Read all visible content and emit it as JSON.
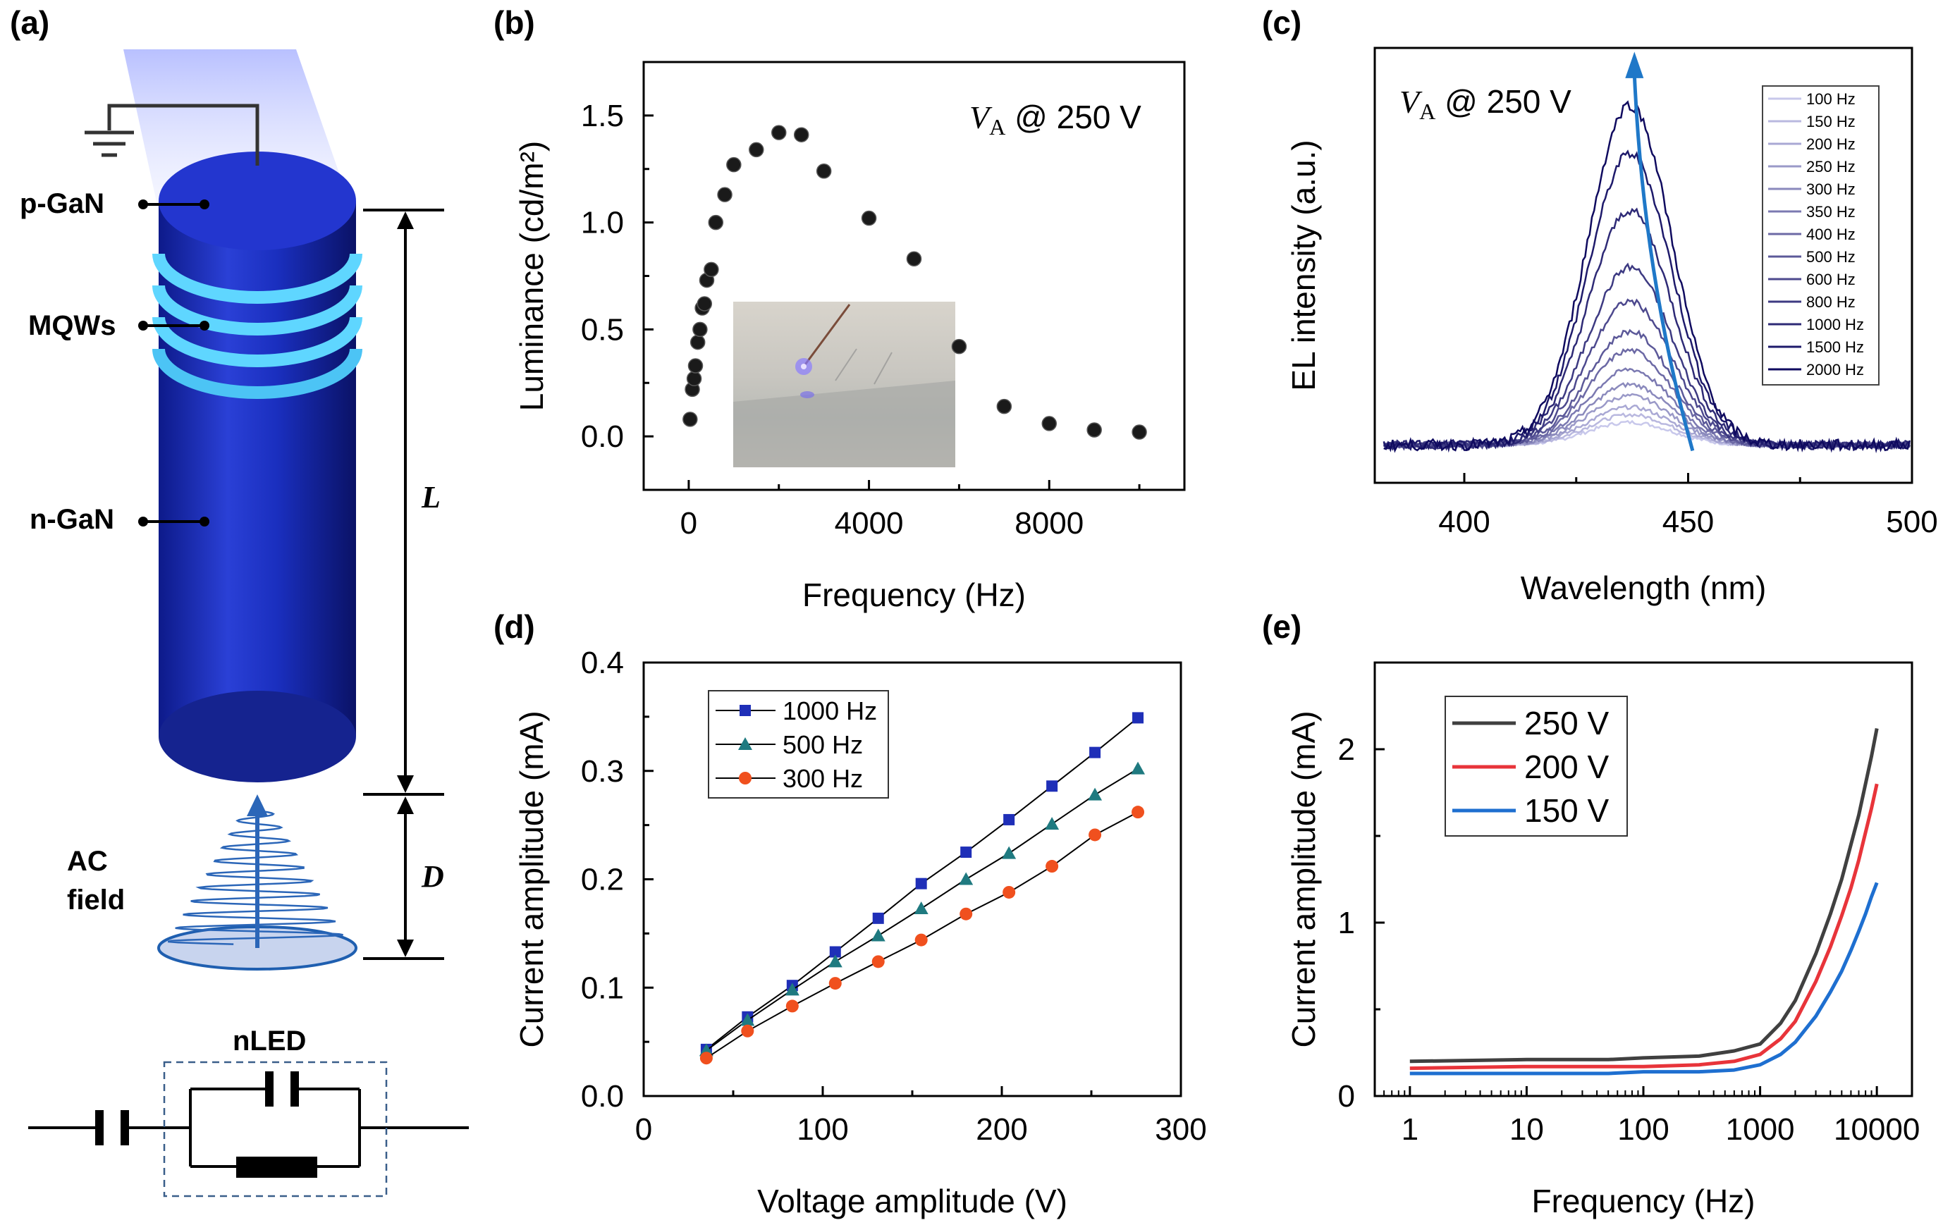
{
  "panels": {
    "a": {
      "label": "(a)",
      "layers": [
        "p-GaN",
        "MQWs",
        "n-GaN"
      ],
      "dim_L": "L",
      "dim_D": "D",
      "field_line1": "AC",
      "field_line2": "field",
      "circuit_label": "nLED"
    },
    "b": {
      "label": "(b)"
    },
    "c": {
      "label": "(c)"
    },
    "d": {
      "label": "(d)"
    },
    "e": {
      "label": "(e)"
    }
  },
  "colors": {
    "axis": "#000000",
    "cylinder": "#1a2fbf",
    "mqw": "#5fd6ff",
    "arrow_c": "#1f78c8",
    "d_1000": "#1f2fb8",
    "d_500": "#1f7a80",
    "d_300": "#f0501e",
    "e_250": "#404040",
    "e_200": "#e8343a",
    "e_150": "#1e6fd0"
  },
  "chart_data": [
    {
      "id": "b",
      "type": "scatter",
      "xlabel": "Frequency (Hz)",
      "ylabel": "Luminance (cd/m²)",
      "annotation": "V_A @ 250 V",
      "xlim": [
        -1000,
        11000
      ],
      "ylim": [
        -0.25,
        1.75
      ],
      "xticks": [
        "0",
        "4000",
        "8000"
      ],
      "xtick_values": [
        0,
        4000,
        8000
      ],
      "yticks": [
        "0.0",
        "0.5",
        "1.0",
        "1.5"
      ],
      "ytick_values": [
        0.0,
        0.5,
        1.0,
        1.5
      ],
      "x": [
        30,
        80,
        120,
        150,
        200,
        250,
        300,
        350,
        400,
        500,
        600,
        800,
        1000,
        1500,
        2000,
        2500,
        3000,
        4000,
        5000,
        6000,
        7000,
        8000,
        9000,
        10000
      ],
      "y": [
        0.08,
        0.22,
        0.27,
        0.33,
        0.44,
        0.5,
        0.6,
        0.62,
        0.73,
        0.78,
        1.0,
        1.13,
        1.27,
        1.34,
        1.42,
        1.41,
        1.24,
        1.02,
        0.83,
        0.42,
        0.14,
        0.06,
        0.03,
        0.02
      ],
      "inset": "photo"
    },
    {
      "id": "c",
      "type": "line",
      "xlabel": "Wavelength (nm)",
      "ylabel": "EL intensity (a.u.)",
      "annotation": "V_A @ 250 V",
      "xlim": [
        380,
        500
      ],
      "ylim": [
        0,
        1.15
      ],
      "xticks": [
        "400",
        "450",
        "500"
      ],
      "xtick_values": [
        400,
        450,
        500
      ],
      "peak_nm": 437,
      "fwhm_nm": 22,
      "baseline": 0.1,
      "series": [
        {
          "name": "100 Hz",
          "peak": 0.06
        },
        {
          "name": "150 Hz",
          "peak": 0.08
        },
        {
          "name": "200 Hz",
          "peak": 0.1
        },
        {
          "name": "250 Hz",
          "peak": 0.13
        },
        {
          "name": "300 Hz",
          "peak": 0.16
        },
        {
          "name": "350 Hz",
          "peak": 0.2
        },
        {
          "name": "400 Hz",
          "peak": 0.25
        },
        {
          "name": "500 Hz",
          "peak": 0.3
        },
        {
          "name": "600 Hz",
          "peak": 0.38
        },
        {
          "name": "800 Hz",
          "peak": 0.47
        },
        {
          "name": "1000 Hz",
          "peak": 0.62
        },
        {
          "name": "1500 Hz",
          "peak": 0.77
        },
        {
          "name": "2000 Hz",
          "peak": 0.9
        }
      ]
    },
    {
      "id": "d",
      "type": "line",
      "xlabel": "Voltage amplitude (V)",
      "ylabel": "Current amplitude (mA)",
      "xlim": [
        0,
        300
      ],
      "ylim": [
        0,
        0.4
      ],
      "xticks": [
        "0",
        "100",
        "200",
        "300"
      ],
      "xtick_values": [
        0,
        100,
        200,
        300
      ],
      "yticks": [
        "0.0",
        "0.1",
        "0.2",
        "0.3",
        "0.4"
      ],
      "ytick_values": [
        0,
        0.1,
        0.2,
        0.3,
        0.4
      ],
      "x": [
        35,
        58,
        83,
        107,
        131,
        155,
        180,
        204,
        228,
        252,
        276
      ],
      "series": [
        {
          "name": "1000 Hz",
          "marker": "square",
          "values": [
            0.043,
            0.073,
            0.102,
            0.133,
            0.164,
            0.196,
            0.225,
            0.255,
            0.286,
            0.317,
            0.349
          ]
        },
        {
          "name": "500 Hz",
          "marker": "triangle",
          "values": [
            0.042,
            0.07,
            0.098,
            0.124,
            0.148,
            0.173,
            0.2,
            0.224,
            0.251,
            0.278,
            0.302
          ]
        },
        {
          "name": "300 Hz",
          "marker": "circle",
          "values": [
            0.035,
            0.06,
            0.083,
            0.104,
            0.124,
            0.144,
            0.168,
            0.188,
            0.212,
            0.241,
            0.262
          ]
        }
      ]
    },
    {
      "id": "e",
      "type": "line",
      "xlabel": "Frequency (Hz)",
      "ylabel": "Current amplitude (mA)",
      "xscale": "log",
      "xlim": [
        0.5,
        20000
      ],
      "ylim": [
        0,
        2.5
      ],
      "xticks": [
        "1",
        "10",
        "100",
        "1000",
        "10000"
      ],
      "xtick_values": [
        1,
        10,
        100,
        1000,
        10000
      ],
      "yticks": [
        "0",
        "1",
        "2"
      ],
      "ytick_values": [
        0,
        1,
        2
      ],
      "series": [
        {
          "name": "250 V",
          "x": [
            1,
            10,
            50,
            100,
            300,
            600,
            1000,
            1500,
            2000,
            3000,
            4000,
            5000,
            6000,
            7000,
            8000,
            9000,
            10000
          ],
          "values": [
            0.2,
            0.21,
            0.21,
            0.22,
            0.23,
            0.26,
            0.3,
            0.42,
            0.55,
            0.82,
            1.05,
            1.25,
            1.45,
            1.62,
            1.8,
            1.96,
            2.12
          ]
        },
        {
          "name": "200 V",
          "x": [
            1,
            10,
            50,
            100,
            300,
            600,
            1000,
            1500,
            2000,
            3000,
            4000,
            5000,
            6000,
            7000,
            8000,
            9000,
            10000
          ],
          "values": [
            0.16,
            0.17,
            0.17,
            0.17,
            0.18,
            0.2,
            0.24,
            0.33,
            0.43,
            0.66,
            0.86,
            1.04,
            1.2,
            1.36,
            1.52,
            1.66,
            1.8
          ]
        },
        {
          "name": "150 V",
          "x": [
            1,
            10,
            50,
            100,
            300,
            600,
            1000,
            1500,
            2000,
            3000,
            4000,
            5000,
            6000,
            7000,
            8000,
            9000,
            10000
          ],
          "values": [
            0.13,
            0.13,
            0.13,
            0.14,
            0.14,
            0.15,
            0.18,
            0.24,
            0.31,
            0.46,
            0.6,
            0.72,
            0.84,
            0.95,
            1.05,
            1.15,
            1.23
          ]
        }
      ]
    }
  ]
}
